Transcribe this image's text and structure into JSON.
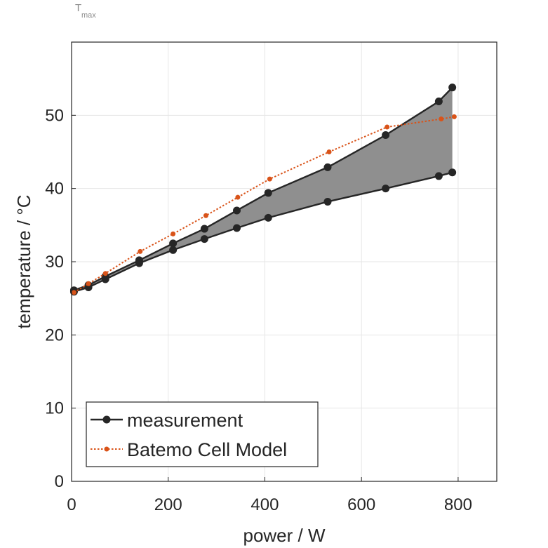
{
  "chart_data": {
    "type": "line",
    "title": "T",
    "title_subscript": "max",
    "xlabel": "power / W",
    "ylabel": "temperature / °C",
    "xlim": [
      0,
      880
    ],
    "ylim": [
      0,
      60
    ],
    "xticks": [
      0,
      200,
      400,
      600,
      800
    ],
    "yticks": [
      0,
      10,
      20,
      30,
      40,
      50
    ],
    "grid": true,
    "legend_position": "bottom-left",
    "shaded_band": {
      "between": [
        "measurement upper",
        "measurement lower"
      ],
      "color": "#8f8f8f"
    },
    "series": [
      {
        "name": "measurement",
        "color": "#262626",
        "marker": "circle",
        "line": "solid",
        "x": [
          5,
          35,
          70,
          140,
          210,
          275,
          342,
          407,
          530,
          650,
          760,
          788
        ],
        "y": [
          26.1,
          26.8,
          28.0,
          30.2,
          32.5,
          34.5,
          37.0,
          39.4,
          42.9,
          47.3,
          51.9,
          53.8
        ]
      },
      {
        "name": "",
        "legend": false,
        "color": "#262626",
        "marker": "circle",
        "line": "solid",
        "x": [
          5,
          35,
          70,
          140,
          210,
          275,
          342,
          407,
          530,
          650,
          760,
          788
        ],
        "y": [
          25.9,
          26.5,
          27.6,
          29.8,
          31.6,
          33.1,
          34.6,
          36.0,
          38.2,
          40.0,
          41.7,
          42.2
        ]
      },
      {
        "name": "Batemo Cell Model",
        "color": "#d95319",
        "marker": "dot",
        "line": "dotted",
        "x": [
          5,
          35,
          70,
          142,
          210,
          278,
          344,
          410,
          533,
          653,
          765,
          792
        ],
        "y": [
          25.8,
          27.0,
          28.4,
          31.4,
          33.8,
          36.3,
          38.8,
          41.3,
          45.0,
          48.4,
          49.5,
          49.8
        ]
      }
    ]
  }
}
